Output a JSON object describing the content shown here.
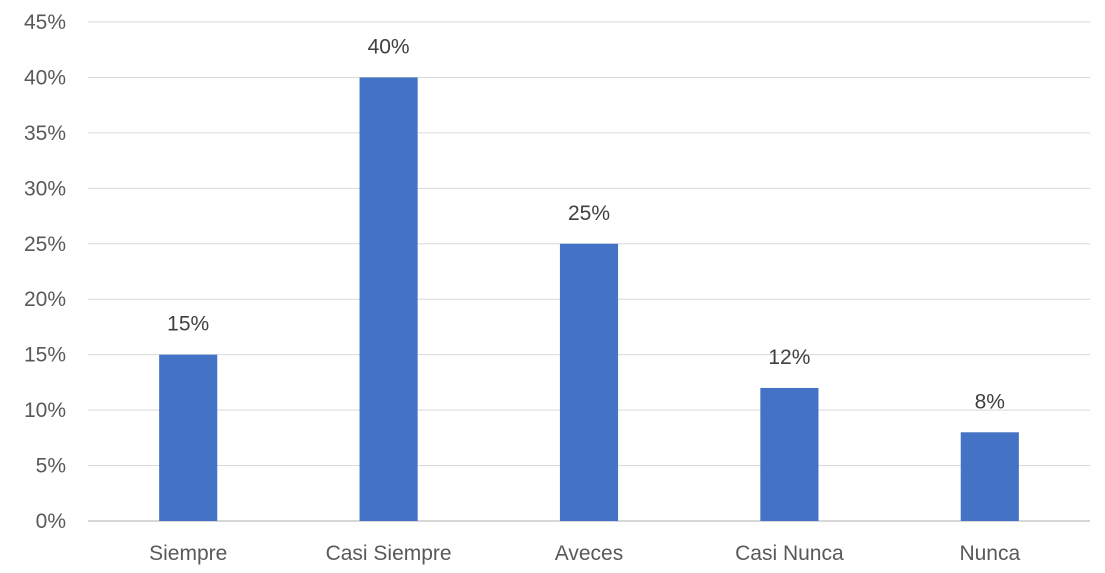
{
  "chart_data": {
    "type": "bar",
    "title": "",
    "xlabel": "",
    "ylabel": "",
    "categories": [
      "Siempre",
      "Casi Siempre",
      "Aveces",
      "Casi Nunca",
      "Nunca"
    ],
    "values": [
      15,
      40,
      25,
      12,
      8
    ],
    "data_labels": [
      "15%",
      "40%",
      "25%",
      "12%",
      "8%"
    ],
    "ylim": [
      0,
      45
    ],
    "yticks": [
      0,
      5,
      10,
      15,
      20,
      25,
      30,
      35,
      40,
      45
    ],
    "ytick_labels": [
      "0%",
      "5%",
      "10%",
      "15%",
      "20%",
      "25%",
      "30%",
      "35%",
      "40%",
      "45%"
    ],
    "grid": true,
    "legend": "none",
    "bar_color": "#4472c4"
  }
}
